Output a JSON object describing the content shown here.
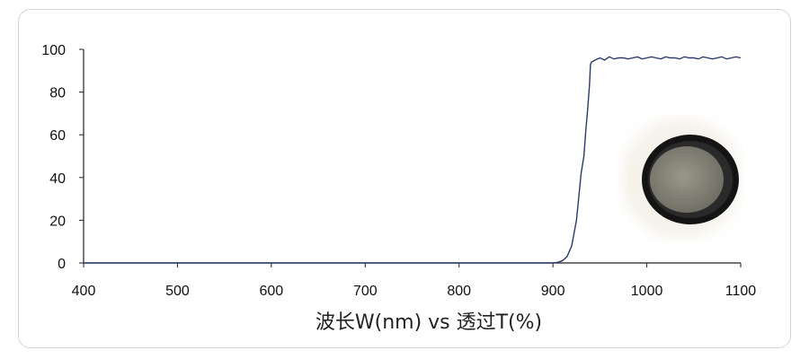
{
  "chart_data": {
    "type": "line",
    "xlabel": "波长W(nm) vs 透过T(%)",
    "xlim": [
      400,
      1100
    ],
    "ylim": [
      0,
      100
    ],
    "x_ticks": [
      400,
      500,
      600,
      700,
      800,
      900,
      1000,
      1100
    ],
    "y_ticks": [
      0,
      20,
      40,
      60,
      80,
      100
    ],
    "grid": false,
    "series": [
      {
        "color": "#2b3a6b",
        "x": [
          400,
          890,
          900,
          905,
          910,
          915,
          920,
          925,
          928,
          930,
          933,
          935,
          937,
          939,
          940,
          941,
          943,
          945,
          950,
          955,
          960,
          965,
          970,
          975,
          980,
          985,
          990,
          995,
          1000,
          1005,
          1010,
          1015,
          1020,
          1025,
          1030,
          1035,
          1040,
          1045,
          1050,
          1055,
          1060,
          1065,
          1070,
          1075,
          1080,
          1085,
          1090,
          1095,
          1100
        ],
        "y": [
          0,
          0,
          0,
          0.3,
          1,
          3,
          8,
          20,
          33,
          42,
          50,
          62,
          72,
          84,
          93,
          94,
          94.5,
          95,
          96,
          95,
          96.5,
          95.5,
          96,
          96,
          95.5,
          96,
          96.5,
          95.5,
          96,
          96.5,
          96,
          95.5,
          96.5,
          96,
          96,
          95.5,
          96.5,
          96,
          96,
          95.5,
          96.5,
          96,
          95.5,
          96,
          96.5,
          95.5,
          96,
          96.5,
          96
        ]
      }
    ]
  },
  "photo": {
    "icon": "optical-filter-photo",
    "ring_color": "#1a1a1a",
    "glass_color": "#8b8a7c"
  }
}
